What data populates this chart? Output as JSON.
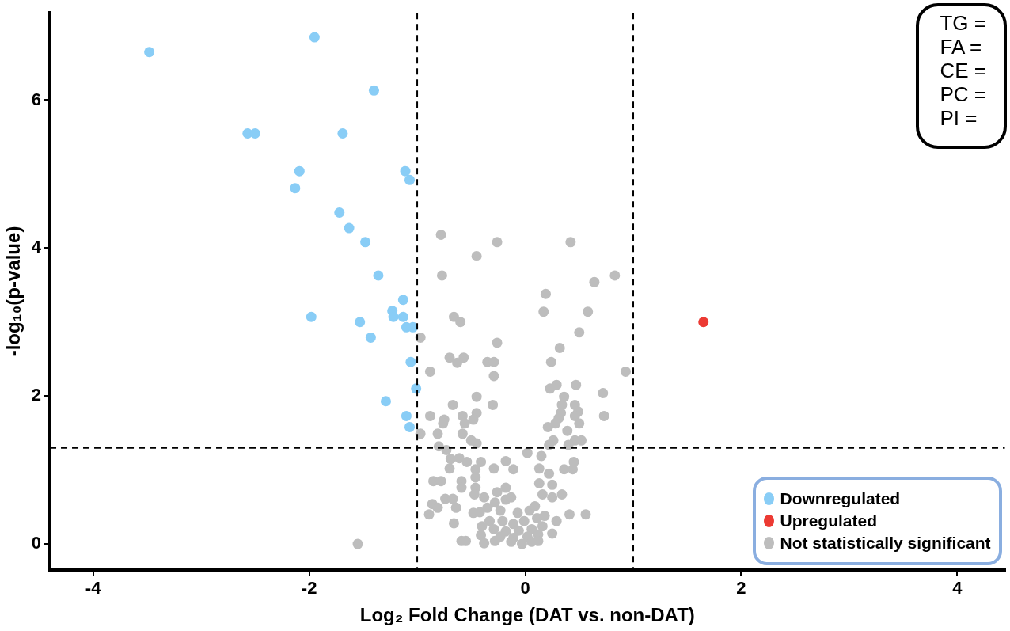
{
  "chart_data": {
    "type": "scatter",
    "xlabel": "Log₂ Fold Change (DAT vs. non-DAT)",
    "ylabel": "-log₁₀(p-value)",
    "xlim": [
      -4.4,
      4.44
    ],
    "ylim": [
      -0.35,
      7.18
    ],
    "xticks": [
      -4,
      -2,
      0,
      2,
      4
    ],
    "yticks": [
      0,
      2,
      4,
      6
    ],
    "grid": false,
    "legend": "bottom right",
    "marker": "circle",
    "ref_lines": [
      {
        "axis": "x",
        "value": -1,
        "color": "#000000",
        "line_style": "dashed"
      },
      {
        "axis": "x",
        "value": 1,
        "color": "#000000",
        "line_style": "dashed"
      },
      {
        "axis": "y",
        "value": 1.3,
        "color": "#000000",
        "line_style": "dashed"
      }
    ],
    "annotations": [
      "TG =",
      "FA =",
      "CE =",
      "PC =",
      "PI ="
    ],
    "series": [
      {
        "name": "Downregulated",
        "color": "#89cdf6",
        "x": [
          -3.48,
          -1.95,
          -1.4,
          -2.57,
          -2.5,
          -1.69,
          -2.09,
          -2.13,
          -1.11,
          -1.07,
          -1.72,
          -1.63,
          -1.48,
          -1.36,
          -1.13,
          -1.23,
          -1.22,
          -1.13,
          -1.1,
          -1.04,
          -1.53,
          -1.43,
          -1.98,
          -1.06,
          -1.01,
          -1.29,
          -1.1,
          -1.07
        ],
        "values": [
          6.65,
          6.85,
          6.13,
          5.55,
          5.55,
          5.55,
          5.04,
          4.81,
          5.04,
          4.92,
          4.48,
          4.27,
          4.08,
          3.63,
          3.3,
          3.15,
          3.07,
          3.07,
          2.93,
          2.93,
          3.0,
          2.79,
          3.07,
          2.46,
          2.1,
          1.93,
          1.73,
          1.58
        ]
      },
      {
        "name": "Upregulated",
        "color": "#ec3a33",
        "x": [
          1.65
        ],
        "values": [
          3.0
        ]
      },
      {
        "name": "Not statistically significant",
        "color": "#bdbdbd",
        "x": [
          -0.78,
          -0.26,
          0.42,
          -0.45,
          -0.77,
          0.83,
          0.64,
          0.19,
          0.17,
          0.58,
          -0.66,
          -0.6,
          -0.97,
          0.5,
          -0.26,
          0.32,
          -0.7,
          -0.57,
          -0.63,
          -0.35,
          -0.29,
          0.24,
          -0.88,
          -0.29,
          0.93,
          0.23,
          0.29,
          0.47,
          -0.45,
          0.36,
          -0.67,
          -0.3,
          0.72,
          0.34,
          0.46,
          -0.88,
          -0.58,
          -0.45,
          0.73,
          0.33,
          0.49,
          -0.75,
          -0.76,
          -0.48,
          -0.56,
          0.31,
          0.46,
          0.5,
          0.21,
          0.28,
          0.39,
          -0.97,
          -0.81,
          -0.58,
          -0.5,
          -0.45,
          -0.8,
          0.26,
          0.22,
          0.46,
          0.52,
          0.4,
          -0.73,
          0.02,
          0.15,
          -0.69,
          -0.61,
          -0.54,
          -0.41,
          -0.18,
          -0.7,
          -0.46,
          -0.29,
          -0.11,
          0.13,
          0.45,
          0.36,
          0.44,
          0.22,
          -0.85,
          -0.78,
          -0.59,
          -0.46,
          0.13,
          0.25,
          -0.59,
          -0.46,
          -0.18,
          0.16,
          0.34,
          0.25,
          -0.26,
          -0.47,
          -0.38,
          -0.74,
          -0.67,
          -0.86,
          -0.64,
          -0.81,
          -0.89,
          -0.48,
          -0.66,
          0.41,
          0.56,
          0.29,
          0.25,
          -0.59,
          -0.55,
          -0.18,
          -0.13,
          -0.28,
          -0.35,
          -0.23,
          -0.07,
          0.04,
          0.09,
          0.18,
          0.11,
          -0.01,
          -0.11,
          -0.21,
          -0.33,
          -0.4,
          -0.29,
          -0.18,
          -0.06,
          0.06,
          0.16,
          0.12,
          0.02,
          -0.11,
          -0.23,
          -0.38,
          -0.28,
          -0.13,
          -0.03,
          0.06,
          0.12,
          -0.41,
          -0.42,
          -1.55
        ],
        "values": [
          4.18,
          4.08,
          4.08,
          3.89,
          3.63,
          3.63,
          3.54,
          3.38,
          3.14,
          3.14,
          3.07,
          3.0,
          2.79,
          2.86,
          2.72,
          2.65,
          2.52,
          2.52,
          2.45,
          2.46,
          2.46,
          2.46,
          2.33,
          2.27,
          2.33,
          2.1,
          2.15,
          2.15,
          1.99,
          1.99,
          1.88,
          1.88,
          2.04,
          1.88,
          1.88,
          1.73,
          1.73,
          1.77,
          1.73,
          1.77,
          1.79,
          1.68,
          1.63,
          1.68,
          1.63,
          1.7,
          1.73,
          1.63,
          1.58,
          1.63,
          1.53,
          1.49,
          1.49,
          1.49,
          1.4,
          1.36,
          1.32,
          1.4,
          1.34,
          1.4,
          1.4,
          1.34,
          1.27,
          1.23,
          1.19,
          1.15,
          1.16,
          1.11,
          1.11,
          1.12,
          1.02,
          1.01,
          1.02,
          1.01,
          1.02,
          1.11,
          1.01,
          1.01,
          0.95,
          0.85,
          0.85,
          0.85,
          0.9,
          0.82,
          0.8,
          0.76,
          0.76,
          0.76,
          0.67,
          0.67,
          0.63,
          0.7,
          0.67,
          0.63,
          0.61,
          0.61,
          0.54,
          0.49,
          0.49,
          0.4,
          0.42,
          0.28,
          0.4,
          0.4,
          0.31,
          0.14,
          0.04,
          0.04,
          0.6,
          0.63,
          0.56,
          0.49,
          0.45,
          0.42,
          0.45,
          0.51,
          0.38,
          0.35,
          0.31,
          0.27,
          0.31,
          0.31,
          0.24,
          0.2,
          0.17,
          0.18,
          0.2,
          0.24,
          0.13,
          0.1,
          0.08,
          0.1,
          0.01,
          0.04,
          0.03,
          0.0,
          0.03,
          0.04,
          0.12,
          0.43,
          0.0
        ]
      }
    ]
  }
}
